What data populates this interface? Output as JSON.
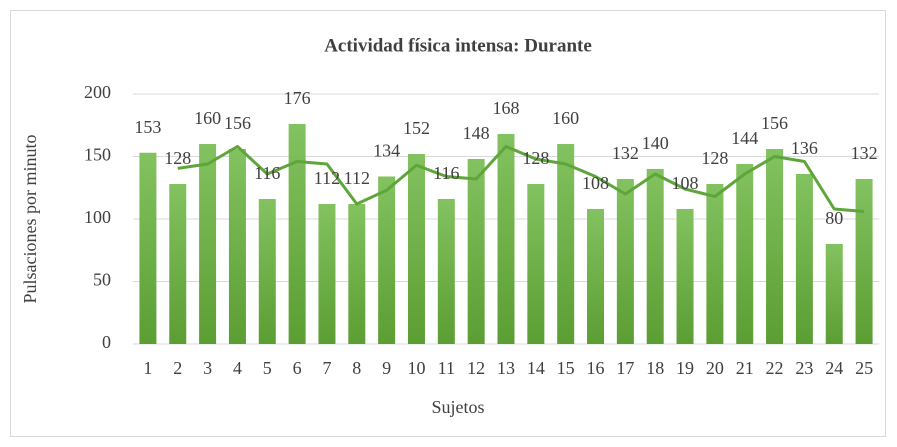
{
  "chart_data": {
    "type": "bar",
    "title": "Actividad física intensa: Durante",
    "x_label": "Sujetos",
    "y_label": "Pulsaciones por minuto",
    "categories": [
      "1",
      "2",
      "3",
      "4",
      "5",
      "6",
      "7",
      "8",
      "9",
      "10",
      "11",
      "12",
      "13",
      "14",
      "15",
      "16",
      "17",
      "18",
      "19",
      "20",
      "21",
      "22",
      "23",
      "24",
      "25"
    ],
    "series": [
      {
        "type": "bar",
        "color": "#70ad47",
        "values": [
          153,
          128,
          160,
          156,
          116,
          176,
          112,
          112,
          134,
          152,
          116,
          148,
          168,
          128,
          160,
          108,
          132,
          140,
          108,
          128,
          144,
          156,
          136,
          80,
          132
        ]
      },
      {
        "type": "line",
        "color": "#5ea53a",
        "values": [
          null,
          140.5,
          144,
          158,
          136,
          146,
          144,
          112,
          123,
          143,
          134,
          132,
          158,
          148,
          144,
          134,
          120,
          136,
          124,
          118,
          136,
          150,
          146,
          108,
          106
        ]
      }
    ],
    "ylim": [
      0,
      200
    ],
    "yticks": [
      0,
      50,
      100,
      150,
      200
    ],
    "grid": true,
    "data_labels": true
  }
}
